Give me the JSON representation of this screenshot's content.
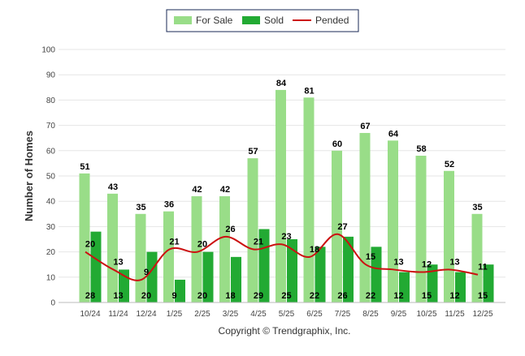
{
  "chart_data": {
    "type": "bar",
    "title": "",
    "xlabel": "",
    "ylabel": "Number of Homes",
    "ylim": [
      0,
      100
    ],
    "yticks": [
      0,
      10,
      20,
      30,
      40,
      50,
      60,
      70,
      80,
      90,
      100
    ],
    "grid": true,
    "legend_position": "top-center",
    "categories": [
      "10/24",
      "11/24",
      "12/24",
      "1/25",
      "2/25",
      "3/25",
      "4/25",
      "5/25",
      "6/25",
      "7/25",
      "8/25",
      "9/25",
      "10/25",
      "11/25",
      "12/25"
    ],
    "series": [
      {
        "name": "For Sale",
        "type": "bar",
        "color": "#99dd88",
        "values": [
          51,
          43,
          35,
          36,
          42,
          42,
          57,
          84,
          81,
          60,
          67,
          64,
          58,
          52,
          35
        ]
      },
      {
        "name": "Sold",
        "type": "bar",
        "color": "#22aa33",
        "values": [
          28,
          13,
          20,
          9,
          20,
          18,
          29,
          25,
          22,
          26,
          22,
          12,
          15,
          12,
          15
        ]
      },
      {
        "name": "Pended",
        "type": "line",
        "color": "#cc1111",
        "values": [
          20,
          13,
          9,
          21,
          20,
          26,
          21,
          23,
          18,
          27,
          15,
          13,
          12,
          13,
          11
        ]
      }
    ],
    "copyright": "Copyright © Trendgraphix, Inc."
  }
}
